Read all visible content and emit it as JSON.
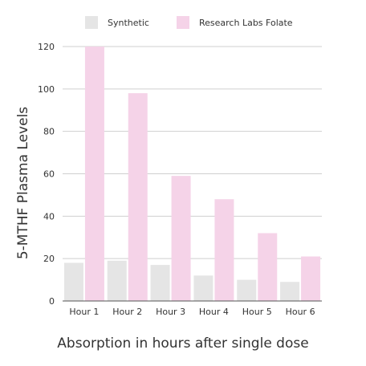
{
  "chart_data": {
    "type": "bar",
    "categories": [
      "Hour 1",
      "Hour 2",
      "Hour 3",
      "Hour 4",
      "Hour 5",
      "Hour 6"
    ],
    "series": [
      {
        "name": "Synthetic",
        "color": "#e5e5e5",
        "values": [
          18,
          19,
          17,
          12,
          10,
          9
        ]
      },
      {
        "name": "Research Labs Folate",
        "color": "#f5d3e8",
        "values": [
          120,
          98,
          59,
          48,
          32,
          21
        ]
      }
    ],
    "xlabel": "Absorption in hours after single dose",
    "ylabel": "5-MTHF Plasma Levels",
    "ylim": [
      0,
      120
    ],
    "yticks": [
      0,
      20,
      40,
      60,
      80,
      100,
      120
    ],
    "grid": true,
    "legend": "top-center",
    "colors": {
      "grid": "#cfcfcf",
      "axis": "#555555",
      "text": "#333333"
    }
  }
}
